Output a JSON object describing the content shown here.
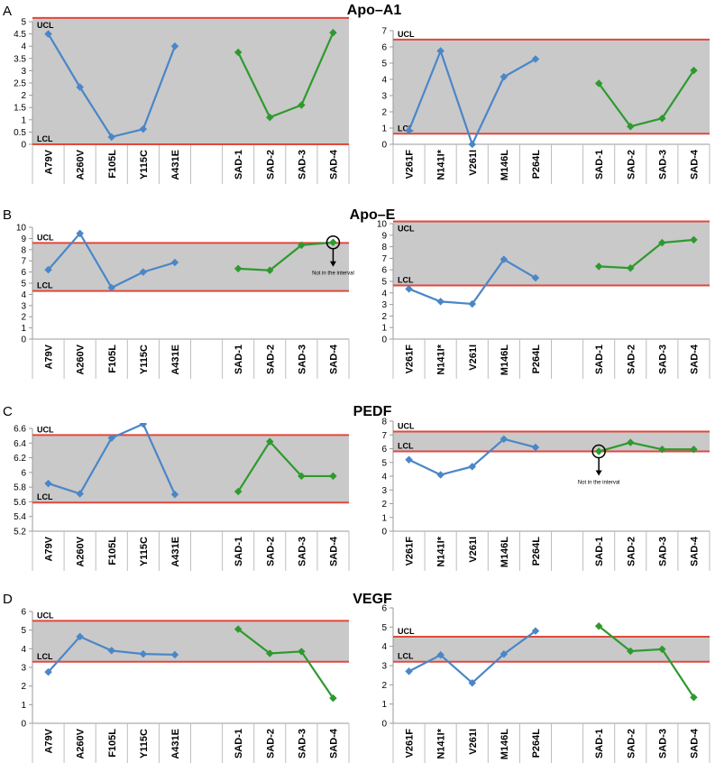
{
  "figure": {
    "panels": [
      {
        "letter": "A",
        "title": "Apo–A1"
      },
      {
        "letter": "B",
        "title": "Apo–E"
      },
      {
        "letter": "C",
        "title": "PEDF"
      },
      {
        "letter": "D",
        "title": "VEGF"
      }
    ],
    "colors": {
      "band_fill": "#c9c9c9",
      "limit_line": "#e0483e",
      "series_mutant": "#4a86c8",
      "series_sad": "#2e9a2e",
      "axis": "#9a9a9a"
    }
  },
  "chart_data": [
    {
      "panel": "A",
      "side": "left",
      "type": "line",
      "ylim": [
        0,
        5
      ],
      "yticks": [
        0,
        0.5,
        1,
        1.5,
        2,
        2.5,
        3,
        3.5,
        4,
        4.5,
        5
      ],
      "ucl": 5.15,
      "lcl": 0,
      "ucl_label": "UCL",
      "lcl_label": "LCL",
      "categories": [
        "A79V",
        "A260V",
        "F105L",
        "Y115C",
        "A431E",
        "",
        "SAD-1",
        "SAD-2",
        "SAD-3",
        "SAD-4"
      ],
      "series": [
        {
          "values": [
            4.5,
            2.33,
            0.3,
            0.62,
            4.0,
            null,
            null,
            null,
            null,
            null
          ]
        },
        {
          "values": [
            null,
            null,
            null,
            null,
            null,
            null,
            3.75,
            1.1,
            1.6,
            4.55
          ]
        }
      ],
      "annotations": []
    },
    {
      "panel": "A",
      "side": "right",
      "type": "line",
      "ylim": [
        0,
        7
      ],
      "yticks": [
        0,
        1,
        2,
        3,
        4,
        5,
        6,
        7
      ],
      "ucl": 6.45,
      "lcl": 0.65,
      "ucl_label": "UCL",
      "lcl_label": "LCL",
      "categories": [
        "V261F",
        "N141I*",
        "V261I",
        "M146L",
        "P264L",
        "",
        "SAD-1",
        "SAD-2",
        "SAD-3",
        "SAD-4"
      ],
      "series": [
        {
          "values": [
            0.85,
            5.75,
            0.0,
            4.15,
            5.25,
            null,
            null,
            null,
            null,
            null
          ]
        },
        {
          "values": [
            null,
            null,
            null,
            null,
            null,
            null,
            3.75,
            1.1,
            1.6,
            4.55
          ]
        }
      ],
      "annotations": []
    },
    {
      "panel": "B",
      "side": "left",
      "type": "line",
      "ylim": [
        0,
        10
      ],
      "yticks": [
        0,
        1,
        2,
        3,
        4,
        5,
        6,
        7,
        8,
        9,
        10
      ],
      "ucl": 8.6,
      "lcl": 4.3,
      "ucl_label": "UCL",
      "lcl_label": "LCL",
      "categories": [
        "A79V",
        "A260V",
        "F105L",
        "Y115C",
        "A431E",
        "",
        "SAD-1",
        "SAD-2",
        "SAD-3",
        "SAD-4"
      ],
      "series": [
        {
          "values": [
            6.2,
            9.45,
            4.6,
            6.0,
            6.85,
            null,
            null,
            null,
            null,
            null
          ]
        },
        {
          "values": [
            null,
            null,
            null,
            null,
            null,
            null,
            6.3,
            6.15,
            8.4,
            8.65
          ]
        }
      ],
      "annotations": [
        {
          "text": "Not in the interval",
          "cat_index": 9,
          "value": 8.65
        }
      ]
    },
    {
      "panel": "B",
      "side": "right",
      "type": "line",
      "ylim": [
        0,
        10
      ],
      "yticks": [
        0,
        1,
        2,
        3,
        4,
        5,
        6,
        7,
        8,
        9,
        10
      ],
      "ucl": 10.2,
      "lcl": 4.65,
      "ucl_label": "UCL",
      "lcl_label": "LCL",
      "categories": [
        "V261F",
        "N141I*",
        "V261I",
        "M146L",
        "P264L",
        "",
        "SAD-1",
        "SAD-2",
        "SAD-3",
        "SAD-4"
      ],
      "series": [
        {
          "values": [
            4.35,
            3.25,
            3.05,
            6.9,
            5.3,
            null,
            null,
            null,
            null,
            null
          ]
        },
        {
          "values": [
            null,
            null,
            null,
            null,
            null,
            null,
            6.3,
            6.15,
            8.35,
            8.6
          ]
        }
      ],
      "annotations": []
    },
    {
      "panel": "C",
      "side": "left",
      "type": "line",
      "ylim": [
        5.2,
        6.6
      ],
      "yticks": [
        5.2,
        5.4,
        5.6,
        5.8,
        6,
        6.2,
        6.4,
        6.6
      ],
      "ucl": 6.51,
      "lcl": 5.59,
      "ucl_label": "UCL",
      "lcl_label": "LCL",
      "categories": [
        "A79V",
        "A260V",
        "F105L",
        "Y115C",
        "A431E",
        "",
        "SAD-1",
        "SAD-2",
        "SAD-3",
        "SAD-4"
      ],
      "series": [
        {
          "values": [
            5.85,
            5.71,
            6.47,
            6.66,
            5.7,
            null,
            null,
            null,
            null,
            null
          ]
        },
        {
          "values": [
            null,
            null,
            null,
            null,
            null,
            null,
            5.74,
            6.42,
            5.95,
            5.95
          ]
        }
      ],
      "annotations": []
    },
    {
      "panel": "C",
      "side": "right",
      "type": "line",
      "ylim": [
        0,
        8
      ],
      "yticks": [
        0,
        1,
        2,
        3,
        4,
        5,
        6,
        7,
        8
      ],
      "ucl": 7.25,
      "lcl": 5.8,
      "ucl_label": "UCL",
      "lcl_label": "LCL",
      "categories": [
        "V261F",
        "N141I*",
        "V261I",
        "M146L",
        "P264L",
        "",
        "SAD-1",
        "SAD-2",
        "SAD-3",
        "SAD-4"
      ],
      "series": [
        {
          "values": [
            5.2,
            4.1,
            4.7,
            6.7,
            6.1,
            null,
            null,
            null,
            null,
            null
          ]
        },
        {
          "values": [
            null,
            null,
            null,
            null,
            null,
            null,
            5.8,
            6.45,
            5.95,
            5.95
          ]
        }
      ],
      "annotations": [
        {
          "text": "Not in the interval",
          "cat_index": 6,
          "value": 5.8
        }
      ]
    },
    {
      "panel": "D",
      "side": "left",
      "type": "line",
      "ylim": [
        0,
        6
      ],
      "yticks": [
        0,
        1,
        2,
        3,
        4,
        5,
        6
      ],
      "ucl": 5.5,
      "lcl": 3.3,
      "ucl_label": "UCL",
      "lcl_label": "LCL",
      "categories": [
        "A79V",
        "A260V",
        "F105L",
        "Y115C",
        "A431E",
        "",
        "SAD-1",
        "SAD-2",
        "SAD-3",
        "SAD-4"
      ],
      "series": [
        {
          "values": [
            2.75,
            4.65,
            3.9,
            3.72,
            3.68,
            null,
            null,
            null,
            null,
            null
          ]
        },
        {
          "values": [
            null,
            null,
            null,
            null,
            null,
            null,
            5.05,
            3.75,
            3.85,
            1.35
          ]
        }
      ],
      "annotations": []
    },
    {
      "panel": "D",
      "side": "right",
      "type": "line",
      "ylim": [
        0,
        6
      ],
      "yticks": [
        0,
        1,
        2,
        3,
        4,
        5,
        6
      ],
      "ucl": 4.5,
      "lcl": 3.2,
      "ucl_label": "UCL",
      "lcl_label": "LCL",
      "categories": [
        "V261F",
        "N141I*",
        "V261I",
        "M146L",
        "P264L",
        "",
        "SAD-1",
        "SAD-2",
        "SAD-3",
        "SAD-4"
      ],
      "series": [
        {
          "values": [
            2.7,
            3.55,
            2.1,
            3.6,
            4.8,
            null,
            null,
            null,
            null,
            null
          ]
        },
        {
          "values": [
            null,
            null,
            null,
            null,
            null,
            null,
            5.05,
            3.75,
            3.85,
            1.35
          ]
        }
      ],
      "annotations": []
    }
  ]
}
